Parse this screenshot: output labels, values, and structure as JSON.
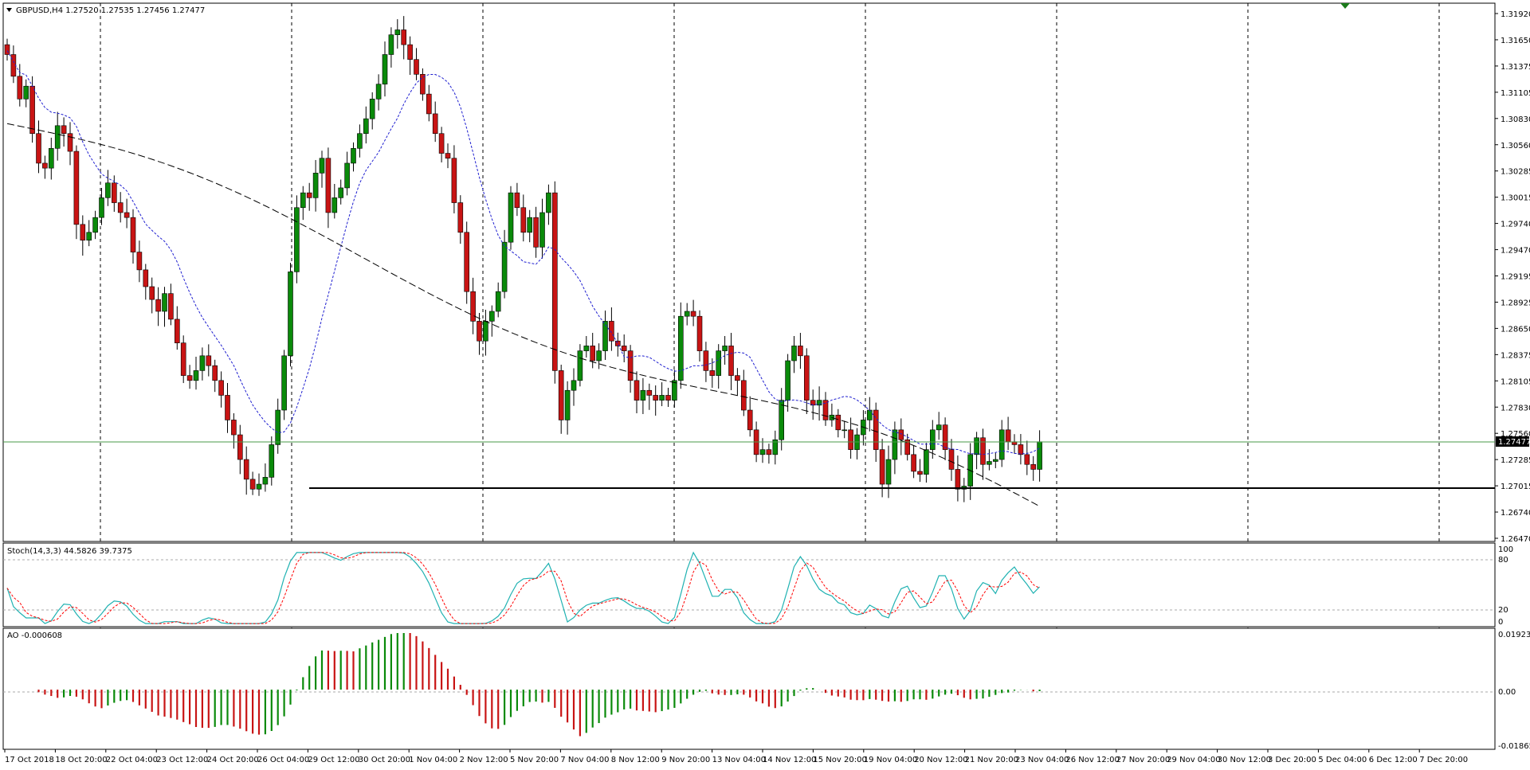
{
  "main_panel": {
    "title": "GBPUSD,H4  1.27520 1.27535 1.27456 1.27477",
    "price_labels": [
      "1.31920",
      "1.31650",
      "1.31375",
      "1.31105",
      "1.30830",
      "1.30560",
      "1.30285",
      "1.30015",
      "1.29740",
      "1.29470",
      "1.29195",
      "1.28925",
      "1.28650",
      "1.28375",
      "1.28105",
      "1.27830",
      "1.27560",
      "1.27285",
      "1.27015",
      "1.26740",
      "1.26470"
    ],
    "current_price": "1.27477"
  },
  "stoch_panel": {
    "title": "Stoch(14,3,3) 44.5826 39.7375",
    "labels": [
      "100",
      "80",
      "20",
      "0"
    ]
  },
  "ao_panel": {
    "title": "AO -0.000608",
    "labels": [
      "0.019239",
      "0.00",
      "-0.018657"
    ]
  },
  "time_axis": {
    "labels": [
      "17 Oct 2018",
      "18 Oct 20:00",
      "22 Oct 04:00",
      "23 Oct 12:00",
      "24 Oct 20:00",
      "26 Oct 04:00",
      "29 Oct 12:00",
      "30 Oct 20:00",
      "1 Nov 04:00",
      "2 Nov 12:00",
      "5 Nov 20:00",
      "7 Nov 04:00",
      "8 Nov 12:00",
      "9 Nov 20:00",
      "13 Nov 04:00",
      "14 Nov 12:00",
      "15 Nov 20:00",
      "19 Nov 04:00",
      "20 Nov 12:00",
      "21 Nov 20:00",
      "23 Nov 04:00",
      "26 Nov 12:00",
      "27 Nov 20:00",
      "29 Nov 04:00",
      "30 Nov 12:00",
      "3 Dec 20:00",
      "5 Dec 04:00",
      "6 Dec 12:00",
      "7 Dec 20:00"
    ]
  },
  "colors": {
    "bull": "#0a8a0a",
    "bear": "#c81414",
    "ma_fast": "#1f1fd0",
    "ma_slow": "#000000",
    "stoch_main": "#20b2b2",
    "stoch_signal": "#ff0000",
    "current_price_line": "#4a9a4a"
  },
  "chart_data": [
    {
      "type": "candlestick",
      "title": "GBPUSD,H4",
      "ylim": [
        1.2647,
        1.3192
      ],
      "current_price": 1.27477,
      "support_level": 1.2702,
      "close": [
        1.314,
        1.3118,
        1.3095,
        1.3108,
        1.306,
        1.303,
        1.3025,
        1.3045,
        1.3068,
        1.306,
        1.3042,
        1.2968,
        1.2952,
        1.296,
        1.2975,
        1.2995,
        1.301,
        1.299,
        1.298,
        1.2975,
        1.294,
        1.2922,
        1.2905,
        1.2892,
        1.288,
        1.2898,
        1.2872,
        1.2848,
        1.2815,
        1.281,
        1.282,
        1.2835,
        1.2825,
        1.281,
        1.2795,
        1.277,
        1.2755,
        1.273,
        1.271,
        1.27,
        1.2705,
        1.2712,
        1.2745,
        1.278,
        1.2835,
        1.292,
        1.2985,
        1.3,
        1.2995,
        1.302,
        1.3035,
        1.298,
        1.2995,
        1.3005,
        1.303,
        1.3045,
        1.306,
        1.3075,
        1.3095,
        1.311,
        1.314,
        1.316,
        1.3165,
        1.315,
        1.3135,
        1.312,
        1.31,
        1.308,
        1.306,
        1.304,
        1.3035,
        1.299,
        1.296,
        1.29,
        1.287,
        1.285,
        1.287,
        1.288,
        1.29,
        1.295,
        1.3,
        1.2985,
        1.296,
        1.2975,
        1.2945,
        1.298,
        1.3,
        1.282,
        1.277,
        1.28,
        1.281,
        1.284,
        1.2845,
        1.283,
        1.284,
        1.287,
        1.285,
        1.2845,
        1.284,
        1.281,
        1.279,
        1.28,
        1.2795,
        1.279,
        1.2795,
        1.279,
        1.281,
        1.2875,
        1.288,
        1.2875,
        1.284,
        1.282,
        1.2815,
        1.284,
        1.2845,
        1.2815,
        1.281,
        1.278,
        1.276,
        1.2735,
        1.274,
        1.2735,
        1.275,
        1.279,
        1.283,
        1.2845,
        1.2835,
        1.279,
        1.2785,
        1.279,
        1.277,
        1.2775,
        1.276,
        1.276,
        1.274,
        1.2755,
        1.277,
        1.278,
        1.274,
        1.2705,
        1.273,
        1.276,
        1.275,
        1.2735,
        1.2718,
        1.2715,
        1.274,
        1.276,
        1.2765,
        1.274,
        1.272,
        1.27,
        1.2703,
        1.2735,
        1.2752,
        1.2725,
        1.2728,
        1.273,
        1.276,
        1.2748,
        1.2745,
        1.2735,
        1.2725,
        1.272,
        1.2748
      ]
    },
    {
      "type": "line",
      "title": "Stoch(14,3,3)",
      "ylim": [
        0,
        100
      ],
      "series": [
        {
          "name": "Stoch(14,3,3)",
          "last": 44.5826
        },
        {
          "name": "Signal",
          "last": 39.7375
        }
      ]
    },
    {
      "type": "bar",
      "title": "AO",
      "ylim": [
        -0.018657,
        0.019239
      ],
      "last": -0.000608
    }
  ]
}
